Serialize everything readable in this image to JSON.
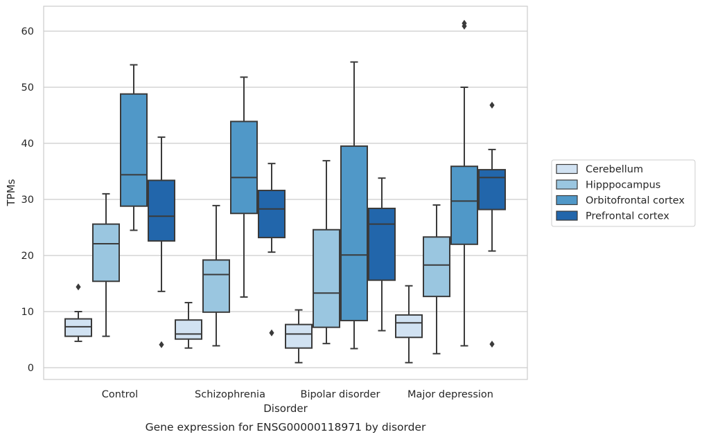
{
  "chart_data": {
    "type": "box",
    "title": "",
    "caption": "Gene expression for ENSG00000118971 by disorder",
    "xlabel": "Disorder",
    "ylabel": "TPMs",
    "ylim": [
      -2,
      64.5
    ],
    "yticks": [
      0,
      10,
      20,
      30,
      40,
      50,
      60
    ],
    "grid": "horizontal",
    "legend_position": "right",
    "categories": [
      "Control",
      "Schizophrenia",
      "Bipolar disorder",
      "Major depression"
    ],
    "series": [
      {
        "name": "Cerebellum",
        "color": "#d1e2f2",
        "boxes": [
          {
            "whisker_low": 4.7,
            "q1": 5.6,
            "median": 7.3,
            "q3": 8.7,
            "whisker_high": 10.0,
            "outliers": [
              14.4
            ]
          },
          {
            "whisker_low": 3.5,
            "q1": 5.1,
            "median": 6.0,
            "q3": 8.5,
            "whisker_high": 11.6,
            "outliers": []
          },
          {
            "whisker_low": 0.9,
            "q1": 3.5,
            "median": 6.0,
            "q3": 7.7,
            "whisker_high": 10.3,
            "outliers": []
          },
          {
            "whisker_low": 0.9,
            "q1": 5.4,
            "median": 8.0,
            "q3": 9.4,
            "whisker_high": 14.6,
            "outliers": []
          }
        ]
      },
      {
        "name": "Hipppocampus",
        "color": "#9ac6e0",
        "boxes": [
          {
            "whisker_low": 5.6,
            "q1": 15.4,
            "median": 22.1,
            "q3": 25.6,
            "whisker_high": 31.0,
            "outliers": []
          },
          {
            "whisker_low": 3.9,
            "q1": 9.9,
            "median": 16.6,
            "q3": 19.2,
            "whisker_high": 28.9,
            "outliers": []
          },
          {
            "whisker_low": 4.3,
            "q1": 7.2,
            "median": 13.3,
            "q3": 24.6,
            "whisker_high": 36.9,
            "outliers": []
          },
          {
            "whisker_low": 2.5,
            "q1": 12.7,
            "median": 18.3,
            "q3": 23.3,
            "whisker_high": 29.0,
            "outliers": []
          }
        ]
      },
      {
        "name": "Orbitofrontal cortex",
        "color": "#5098c8",
        "boxes": [
          {
            "whisker_low": 24.5,
            "q1": 28.8,
            "median": 34.4,
            "q3": 48.8,
            "whisker_high": 54.0,
            "outliers": []
          },
          {
            "whisker_low": 12.6,
            "q1": 27.5,
            "median": 33.9,
            "q3": 43.9,
            "whisker_high": 51.8,
            "outliers": []
          },
          {
            "whisker_low": 3.4,
            "q1": 8.4,
            "median": 20.1,
            "q3": 39.5,
            "whisker_high": 54.5,
            "outliers": []
          },
          {
            "whisker_low": 3.9,
            "q1": 22.0,
            "median": 29.7,
            "q3": 35.9,
            "whisker_high": 50.0,
            "outliers": [
              60.9,
              61.4
            ]
          }
        ]
      },
      {
        "name": "Prefrontal cortex",
        "color": "#2266ab",
        "boxes": [
          {
            "whisker_low": 13.6,
            "q1": 22.6,
            "median": 27.0,
            "q3": 33.4,
            "whisker_high": 41.1,
            "outliers": [
              4.1
            ]
          },
          {
            "whisker_low": 20.6,
            "q1": 23.2,
            "median": 28.3,
            "q3": 31.6,
            "whisker_high": 36.4,
            "outliers": [
              6.2
            ]
          },
          {
            "whisker_low": 6.6,
            "q1": 15.6,
            "median": 25.6,
            "q3": 28.4,
            "whisker_high": 33.8,
            "outliers": []
          },
          {
            "whisker_low": 20.8,
            "q1": 28.2,
            "median": 33.9,
            "q3": 35.3,
            "whisker_high": 38.9,
            "outliers": [
              4.2,
              46.8
            ]
          }
        ]
      }
    ]
  }
}
